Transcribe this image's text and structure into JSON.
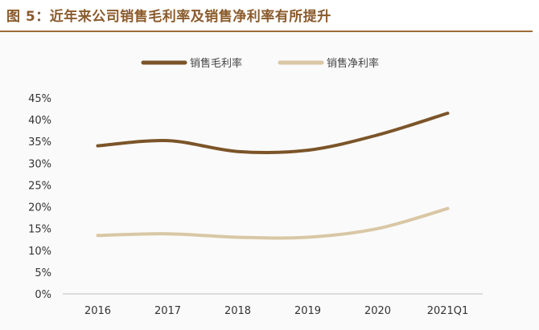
{
  "title": "图 5：近年来公司销售毛利率及销售净利率有所提升",
  "chart_data": {
    "type": "line",
    "categories": [
      "2016",
      "2017",
      "2018",
      "2019",
      "2020",
      "2021Q1"
    ],
    "ylim": [
      0,
      45
    ],
    "yticks": [
      "0%",
      "5%",
      "10%",
      "15%",
      "20%",
      "25%",
      "30%",
      "35%",
      "40%",
      "45%"
    ],
    "legend_position": "top-center",
    "series": [
      {
        "name": "销售毛利率",
        "values": [
          34.0,
          35.2,
          32.7,
          33.0,
          36.5,
          41.5
        ],
        "color": "#7B5428"
      },
      {
        "name": "销售净利率",
        "values": [
          13.4,
          13.8,
          13.0,
          13.0,
          15.0,
          19.6
        ],
        "color": "#D9C7A5"
      }
    ]
  }
}
